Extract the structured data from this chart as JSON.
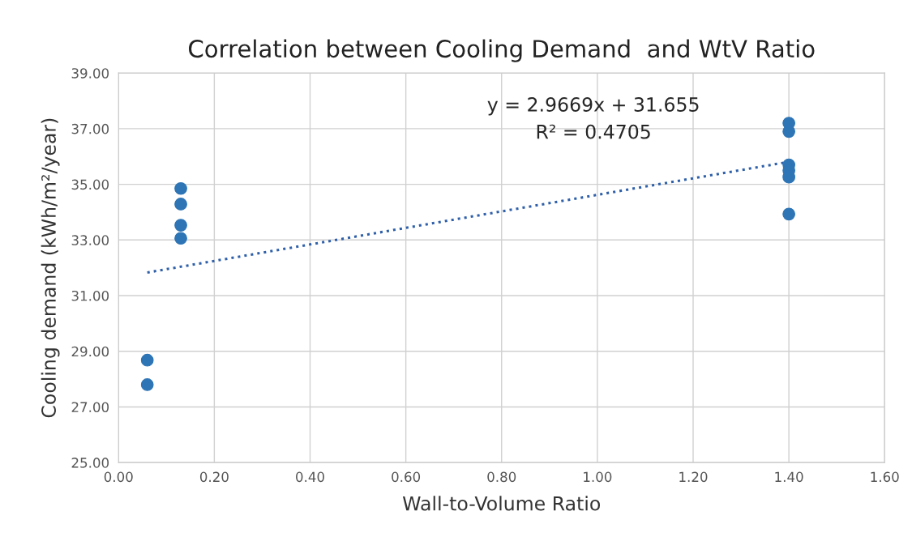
{
  "chart_data": {
    "type": "scatter",
    "title": "Correlation between Cooling Demand  and WtV Ratio",
    "xlabel": "Wall-to-Volume Ratio",
    "ylabel": "Cooling demand (kWh/m²/year)",
    "series": [
      {
        "color": "#2e75b6",
        "marker": "circle",
        "x": [
          0.06,
          0.06,
          0.13,
          0.13,
          0.13,
          0.13,
          1.4,
          1.4,
          1.4,
          1.4,
          1.4,
          1.4
        ],
        "values": [
          28.68,
          27.8,
          34.85,
          34.29,
          33.53,
          33.06,
          37.2,
          36.9,
          35.7,
          35.5,
          35.26,
          33.93
        ]
      },
      {
        "type": "line",
        "color": "#2e5fa8",
        "line_style": "dotted",
        "x": [
          0.06,
          1.4
        ],
        "values": [
          31.83,
          35.81
        ]
      }
    ],
    "annotations": [
      "y = 2.9669x + 31.655",
      "R² = 0.4705"
    ],
    "xlim": [
      0,
      1.6
    ],
    "xticks": [
      {
        "value": 0,
        "label": "0.00"
      },
      {
        "value": 0.2,
        "label": "0.20"
      },
      {
        "value": 0.4,
        "label": "0.40"
      },
      {
        "value": 0.6,
        "label": "0.60"
      },
      {
        "value": 0.8,
        "label": "0.80"
      },
      {
        "value": 1.0,
        "label": "1.00"
      },
      {
        "value": 1.2,
        "label": "1.20"
      },
      {
        "value": 1.4,
        "label": "1.40"
      },
      {
        "value": 1.6,
        "label": "1.60"
      }
    ],
    "ylim": [
      25,
      39
    ],
    "yticks": [
      {
        "value": 25,
        "label": "25.00"
      },
      {
        "value": 27,
        "label": "27.00"
      },
      {
        "value": 29,
        "label": "29.00"
      },
      {
        "value": 31,
        "label": "31.00"
      },
      {
        "value": 33,
        "label": "33.00"
      },
      {
        "value": 35,
        "label": "35.00"
      },
      {
        "value": 37,
        "label": "37.00"
      },
      {
        "value": 39,
        "label": "39.00"
      }
    ],
    "grid": true,
    "legend": false
  }
}
